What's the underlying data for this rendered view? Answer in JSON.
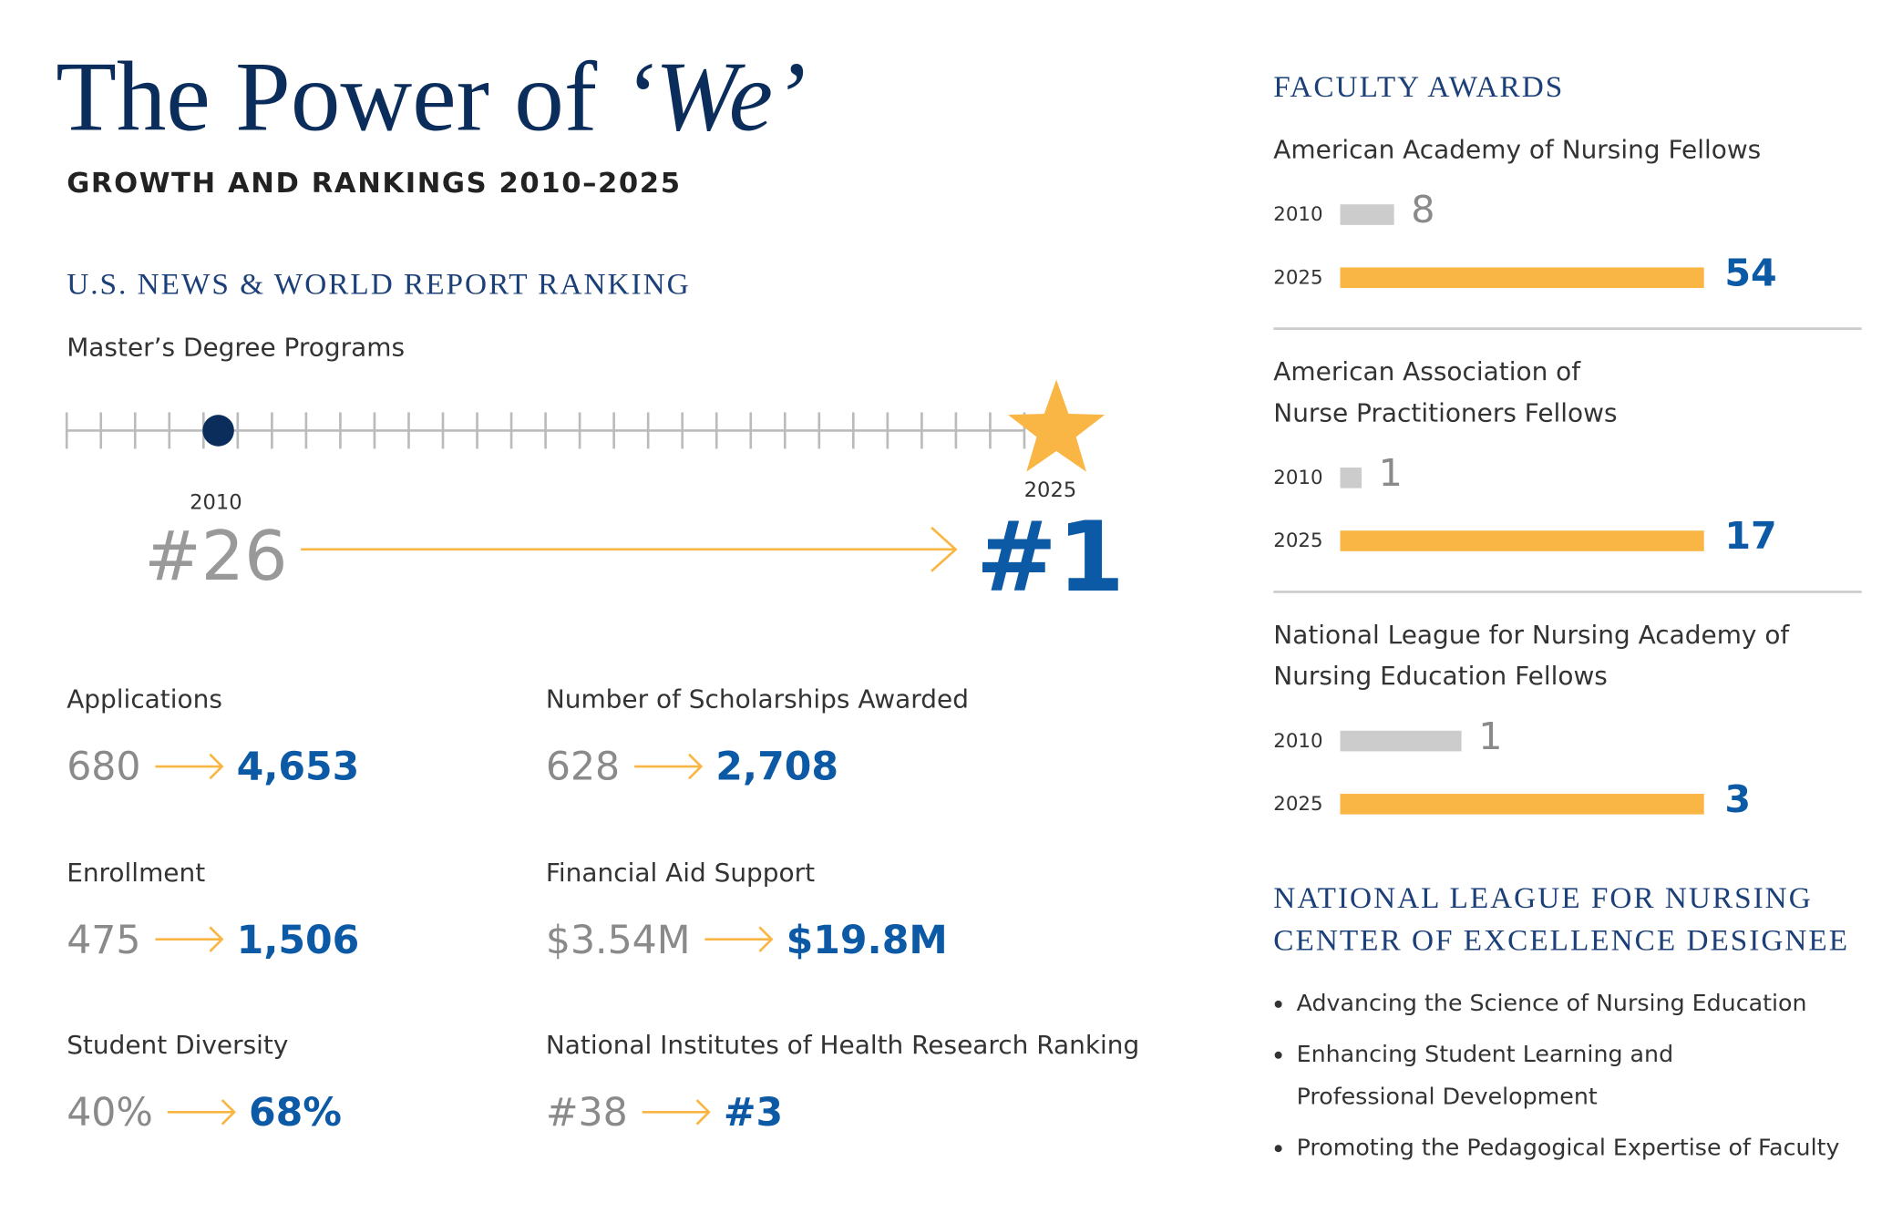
{
  "header": {
    "title_prefix": "The Power of ",
    "title_emphasis": "‘We’",
    "subtitle": "GROWTH AND RANKINGS 2010–2025"
  },
  "ranking": {
    "heading": "U.S. NEWS & WORLD REPORT RANKING",
    "label": "Master’s Degree Programs",
    "from_year": "2010",
    "from": "#26",
    "to_year": "2025",
    "to": "#1"
  },
  "stats": [
    {
      "label": "Applications",
      "from": "680",
      "to": "4,653"
    },
    {
      "label": "Number of Scholarships Awarded",
      "from": "628",
      "to": "2,708"
    },
    {
      "label": "Enrollment",
      "from": "475",
      "to": "1,506"
    },
    {
      "label": "Financial Aid Support",
      "from": "$3.54M",
      "to": "$19.8M"
    },
    {
      "label": "Student Diversity",
      "from": "40%",
      "to": "68%"
    },
    {
      "label": "National Institutes of Health Research Ranking",
      "from": "#38",
      "to": "#3"
    }
  ],
  "faculty_awards": {
    "heading": "FACULTY AWARDS",
    "groups": [
      {
        "label_lines": [
          "American Academy of Nursing Fellows"
        ],
        "rows": [
          {
            "year": "2010",
            "value": 8
          },
          {
            "year": "2025",
            "value": 54
          }
        ]
      },
      {
        "label_lines": [
          "American Association of",
          "Nurse Practitioners Fellows"
        ],
        "rows": [
          {
            "year": "2010",
            "value": 1
          },
          {
            "year": "2025",
            "value": 17
          }
        ]
      },
      {
        "label_lines": [
          "National League for Nursing Academy of",
          "Nursing Education Fellows"
        ],
        "rows": [
          {
            "year": "2010",
            "value": 1
          },
          {
            "year": "2025",
            "value": 3
          }
        ]
      }
    ]
  },
  "center": {
    "heading_lines": [
      "NATIONAL LEAGUE FOR NURSING",
      "CENTER OF EXCELLENCE DESIGNEE"
    ],
    "items": [
      [
        "Advancing the Science of Nursing Education"
      ],
      [
        "Enhancing Student Learning and",
        "Professional Development"
      ],
      [
        "Promoting the Pedagogical Expertise of Faculty"
      ]
    ]
  }
}
